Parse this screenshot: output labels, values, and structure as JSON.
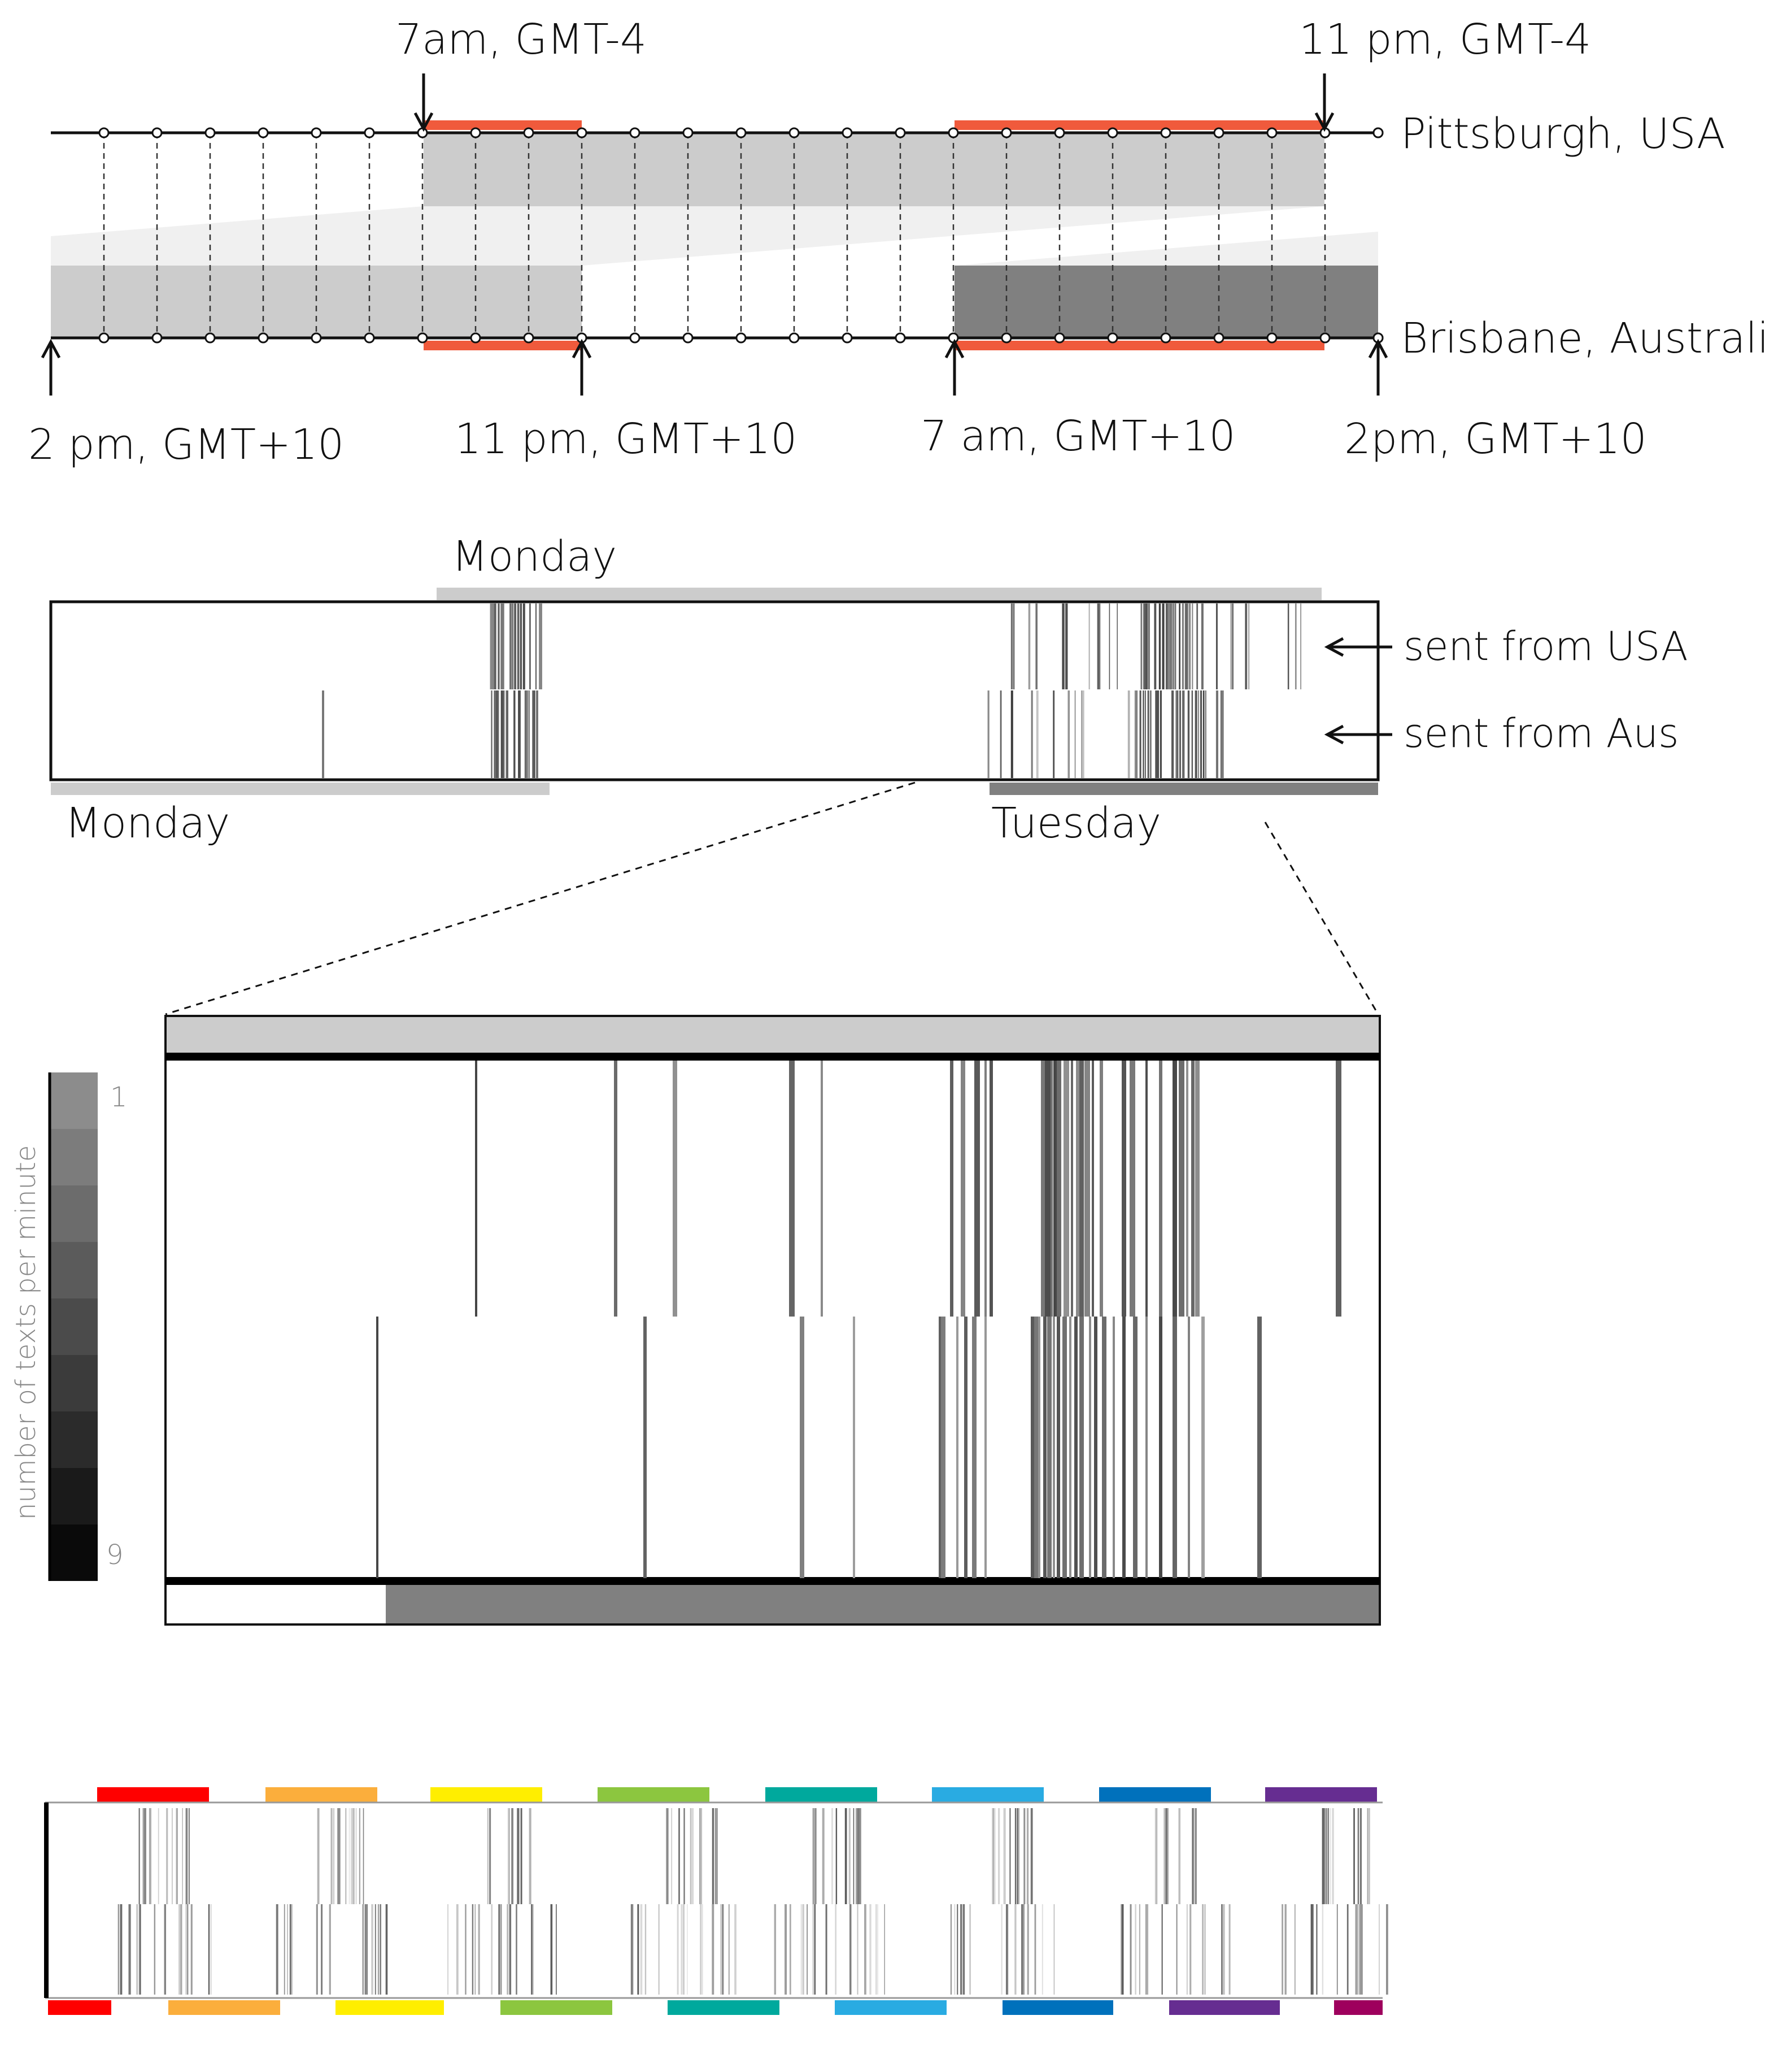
{
  "colors": {
    "accent": "#f05a3c",
    "light_gray": "#cccccc",
    "lighter_gray": "#f0f0f0",
    "dark_gray": "#808080",
    "line": "#111111",
    "rainbow": [
      "#ff0000",
      "#fbae3c",
      "#ffee00",
      "#8cc63f",
      "#00a99d",
      "#29abe2",
      "#0071bc",
      "#662d91",
      "#9e005d"
    ]
  },
  "timezone_diagram": {
    "top_labels": {
      "left": "7am, GMT-4",
      "right": "11 pm, GMT-4"
    },
    "city_top": "Pittsburgh, USA",
    "city_bottom": "Brisbane, Australia",
    "bottom_labels": {
      "a": "2 pm, GMT+10",
      "b": "11 pm, GMT+10",
      "c": "7 am, GMT+10",
      "d": "2pm, GMT+10"
    }
  },
  "overview_strip": {
    "top_day": "Monday",
    "bottom_day_left": "Monday",
    "bottom_day_right": "Tuesday",
    "row_labels": {
      "usa": "sent from USA",
      "aus": "sent from Aus"
    }
  },
  "zoom_view": {
    "legend_title": "number of texts per minute",
    "legend_min": "1",
    "legend_max": "9",
    "legend_steps": 9
  },
  "multi_day": {
    "top_segments": 8,
    "bottom_segments": 9
  }
}
